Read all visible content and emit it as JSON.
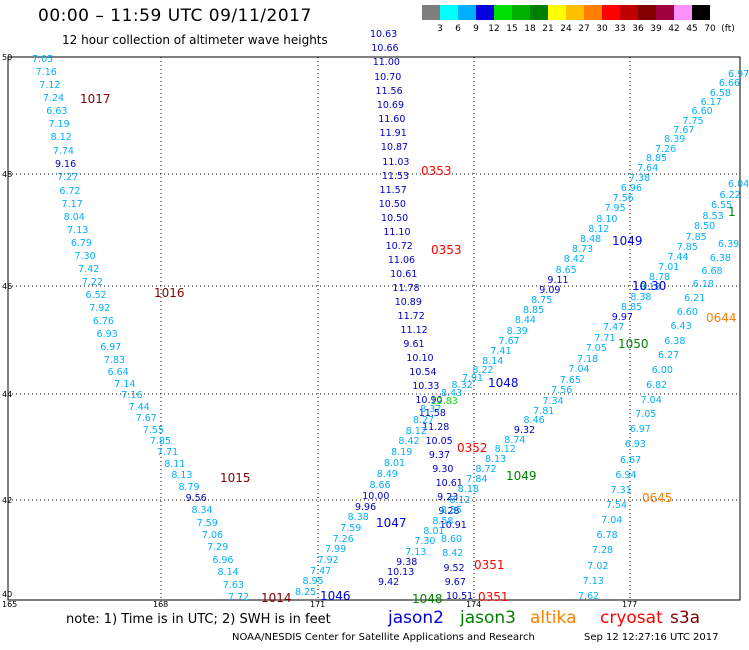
{
  "title": "00:00 – 11:59 UTC 09/11/2017",
  "subtitle": "12 hour collection of altimeter wave heights",
  "legend": {
    "labels": [
      "3",
      "6",
      "9",
      "12",
      "15",
      "18",
      "21",
      "24",
      "27",
      "30",
      "33",
      "36",
      "39",
      "42",
      "45",
      "70",
      "(ft)"
    ],
    "colors": [
      "#7f7f7f",
      "#00ffff",
      "#00b0ff",
      "#0000e0",
      "#00e000",
      "#00b000",
      "#008000",
      "#ffff00",
      "#ffc000",
      "#ff8000",
      "#ff0000",
      "#c00000",
      "#800000",
      "#a00040",
      "#ff90ff",
      "#000000"
    ]
  },
  "axes": {
    "lat_labels": [
      "50",
      "48",
      "46",
      "44",
      "42",
      "40"
    ],
    "lon_labels": [
      "165",
      "168",
      "171",
      "174",
      "177"
    ]
  },
  "tracks": {
    "t1": [
      "7.05",
      "7.16",
      "7.12",
      "7.24",
      "6.63",
      "7.19",
      "8.12",
      "7.74",
      "9.16",
      "7.27",
      "6.72",
      "7.17",
      "8.04",
      "7.13",
      "6.79",
      "7.30",
      "7.42",
      "7.22",
      "6.52",
      "7.92",
      "6.76",
      "6.93",
      "6.97",
      "7.83",
      "6.64",
      "7.14",
      "7.16",
      "7.44",
      "7.67",
      "7.55",
      "7.85",
      "7.71",
      "8.11",
      "8.13",
      "8.79",
      "9.56",
      "8.34",
      "7.59",
      "7.06",
      "7.29",
      "6.96",
      "8.14",
      "7.63",
      "7.72"
    ],
    "t2": [
      "10.63",
      "10.66",
      "11.00",
      "10.70",
      "11.56",
      "10.69",
      "11.60",
      "11.91",
      "10.87",
      "11.03",
      "11.53",
      "11.57",
      "10.50",
      "10.50",
      "11.10",
      "10.72",
      "11.06",
      "10.61",
      "11.78",
      "10.89",
      "11.72",
      "11.12",
      "9.61",
      "10.10",
      "10.54",
      "10.33",
      "10.90",
      "11.58",
      "11.28",
      "10.05",
      "9.37",
      "9.30",
      "10.61",
      "9.23",
      "9.28",
      "10.91",
      "8.60",
      "8.42",
      "9.52",
      "9.67",
      "10.51"
    ],
    "t3": [
      "8.25",
      "8.95",
      "7.47",
      "7.92",
      "7.99",
      "7.26",
      "7.59",
      "8.38",
      "9.96",
      "10.00",
      "8.66",
      "8.49",
      "8.01",
      "8.19",
      "8.42",
      "8.12",
      "8.27",
      "8.37",
      "12.83",
      "8.43",
      "8.32",
      "7.91",
      "8.22",
      "8.14",
      "7.41",
      "7.67",
      "8.39",
      "8.44",
      "8.85",
      "8.75",
      "9.09",
      "9.11",
      "8.65",
      "8.42",
      "8.73",
      "8.48",
      "8.12",
      "8.10",
      "7.95",
      "7.56",
      "6.96",
      "7.38",
      "7.64",
      "8.85",
      "7.26",
      "8.39",
      "7.67",
      "7.75",
      "6.60",
      "6.17",
      "6.58",
      "6.66",
      "6.97"
    ],
    "t4": [
      "9.42",
      "10.13",
      "9.38",
      "7.13",
      "7.30",
      "8.01",
      "8.58",
      "8.35",
      "8.12",
      "8.18",
      "7.84",
      "8.72",
      "8.13",
      "8.12",
      "8.74",
      "9.32",
      "8.46",
      "7.81",
      "7.34",
      "7.56",
      "7.65",
      "7.04",
      "7.18",
      "7.05",
      "7.71",
      "7.47",
      "9.97",
      "8.85",
      "8.38",
      "8.18",
      "8.78",
      "7.01",
      "7.44",
      "7.85",
      "7.85",
      "8.50",
      "8.53",
      "6.55",
      "6.22",
      "6.04"
    ],
    "t5": [
      "7.62",
      "7.13",
      "7.02",
      "7.28",
      "6.78",
      "7.04",
      "7.54",
      "7.31",
      "6.94",
      "6.67",
      "6.93",
      "6.97",
      "7.05",
      "7.04",
      "6.82",
      "6.00",
      "6.27",
      "6.38",
      "6.43",
      "6.60",
      "6.21",
      "6.18",
      "6.68",
      "6.38",
      "6.39"
    ]
  },
  "stations": [
    {
      "id": "1017",
      "color": "#800000"
    },
    {
      "id": "0353",
      "color": "#ff0000"
    },
    {
      "id": "0353",
      "color": "#ff0000"
    },
    {
      "id": "1016",
      "color": "#800000"
    },
    {
      "id": "1049",
      "color": "#0000e0"
    },
    {
      "id": "10.30",
      "color": "#0000e0"
    },
    {
      "id": "0644",
      "color": "#ff8000"
    },
    {
      "id": "1050",
      "color": "#008000"
    },
    {
      "id": "1048",
      "color": "#0000e0"
    },
    {
      "id": "0352",
      "color": "#ff0000"
    },
    {
      "id": "1049",
      "color": "#008000"
    },
    {
      "id": "1015",
      "color": "#800000"
    },
    {
      "id": "0645",
      "color": "#ff8000"
    },
    {
      "id": "1047",
      "color": "#0000e0"
    },
    {
      "id": "0351",
      "color": "#ff0000"
    },
    {
      "id": "1014",
      "color": "#800000"
    },
    {
      "id": "1046",
      "color": "#0000e0"
    },
    {
      "id": "1048",
      "color": "#008000"
    },
    {
      "id": "0351",
      "color": "#ff0000"
    },
    {
      "id": "1",
      "color": "#008000"
    }
  ],
  "note": "note:  1) Time is in UTC;  2) SWH is in feet",
  "satellites": [
    {
      "name": "jason2",
      "color": "#0000e0"
    },
    {
      "name": "jason3",
      "color": "#008000"
    },
    {
      "name": "altika",
      "color": "#ff8000"
    },
    {
      "name": "cryosat",
      "color": "#ff0000"
    },
    {
      "name": "s3a",
      "color": "#800000"
    }
  ],
  "credit": "NOAA/NESDIS Center for Satellite Applications and Research",
  "timestamp": "Sep 12 12:27:16 UTC 2017"
}
